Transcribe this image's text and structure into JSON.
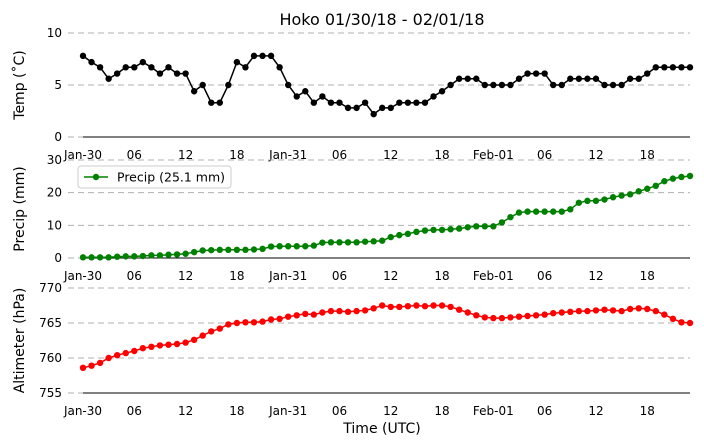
{
  "chart_data": [
    {
      "type": "line",
      "title": "Hoko 01/30/18 - 02/01/18",
      "ylabel": "Temp (˚C)",
      "xlabel": "",
      "ylim": [
        0,
        10
      ],
      "yticks": [
        0,
        5,
        10
      ],
      "grid": true,
      "color": "#000000",
      "xtick_labels": [
        "Jan-30",
        "06",
        "12",
        "18",
        "Jan-31",
        "06",
        "12",
        "18",
        "Feb-01",
        "06",
        "12",
        "18"
      ],
      "xtick_hours": [
        0,
        6,
        12,
        18,
        24,
        30,
        36,
        42,
        48,
        54,
        60,
        66
      ],
      "x_hours": [
        0,
        1,
        2,
        3,
        4,
        5,
        6,
        7,
        8,
        9,
        10,
        11,
        12,
        13,
        14,
        15,
        16,
        17,
        18,
        19,
        20,
        21,
        22,
        23,
        24,
        25,
        26,
        27,
        28,
        29,
        30,
        31,
        32,
        33,
        34,
        35,
        36,
        37,
        38,
        39,
        40,
        41,
        42,
        43,
        44,
        45,
        46,
        47,
        48,
        49,
        50,
        51,
        52,
        53,
        54,
        55,
        56,
        57,
        58,
        59,
        60,
        61,
        62,
        63,
        64,
        65,
        66,
        67,
        68,
        69,
        70,
        71
      ],
      "values": [
        7.8,
        7.2,
        6.7,
        5.6,
        6.1,
        6.7,
        6.7,
        7.2,
        6.7,
        6.1,
        6.7,
        6.1,
        6.1,
        4.4,
        5.0,
        3.3,
        3.3,
        5.0,
        7.2,
        6.7,
        7.8,
        7.8,
        7.8,
        6.7,
        5.0,
        3.9,
        4.4,
        3.3,
        3.9,
        3.3,
        3.3,
        2.8,
        2.8,
        3.3,
        2.2,
        2.8,
        2.8,
        3.3,
        3.3,
        3.3,
        3.3,
        3.9,
        4.4,
        5.0,
        5.6,
        5.6,
        5.6,
        5.0,
        5.0,
        5.0,
        5.0,
        5.6,
        6.1,
        6.1,
        6.1,
        5.0,
        5.0,
        5.6,
        5.6,
        5.6,
        5.6,
        5.0,
        5.0,
        5.0,
        5.6,
        5.6,
        6.1,
        6.7,
        6.7,
        6.7,
        6.7,
        6.7
      ]
    },
    {
      "type": "line",
      "title": "",
      "ylabel": "Precip (mm)",
      "xlabel": "",
      "ylim": [
        0,
        30
      ],
      "yticks": [
        0,
        10,
        20,
        30
      ],
      "grid": true,
      "color": "#008000",
      "legend": {
        "label": "Precip (25.1 mm)",
        "placement": "upper-left"
      },
      "xtick_labels": [
        "Jan-30",
        "06",
        "12",
        "18",
        "Jan-31",
        "06",
        "12",
        "18",
        "Feb-01",
        "06",
        "12",
        "18"
      ],
      "xtick_hours": [
        0,
        6,
        12,
        18,
        24,
        30,
        36,
        42,
        48,
        54,
        60,
        66
      ],
      "x_hours": [
        0,
        1,
        2,
        3,
        4,
        5,
        6,
        7,
        8,
        9,
        10,
        11,
        12,
        13,
        14,
        15,
        16,
        17,
        18,
        19,
        20,
        21,
        22,
        23,
        24,
        25,
        26,
        27,
        28,
        29,
        30,
        31,
        32,
        33,
        34,
        35,
        36,
        37,
        38,
        39,
        40,
        41,
        42,
        43,
        44,
        45,
        46,
        47,
        48,
        49,
        50,
        51,
        52,
        53,
        54,
        55,
        56,
        57,
        58,
        59,
        60,
        61,
        62,
        63,
        64,
        65,
        66,
        67,
        68,
        69,
        70,
        71
      ],
      "values": [
        0.2,
        0.2,
        0.2,
        0.2,
        0.4,
        0.5,
        0.5,
        0.6,
        0.8,
        0.8,
        1.0,
        1.1,
        1.3,
        1.8,
        2.3,
        2.4,
        2.5,
        2.5,
        2.5,
        2.5,
        2.6,
        2.8,
        3.5,
        3.6,
        3.6,
        3.6,
        3.6,
        3.8,
        4.7,
        4.8,
        4.8,
        4.8,
        4.8,
        5.0,
        5.1,
        5.3,
        6.4,
        7.0,
        7.4,
        8.0,
        8.4,
        8.6,
        8.6,
        8.8,
        9.0,
        9.4,
        9.7,
        9.7,
        9.7,
        10.9,
        12.5,
        13.9,
        14.2,
        14.2,
        14.2,
        14.2,
        14.2,
        14.9,
        16.9,
        17.5,
        17.5,
        17.9,
        18.6,
        19.1,
        19.5,
        20.4,
        21.2,
        22.1,
        23.5,
        24.3,
        24.8,
        25.1
      ]
    },
    {
      "type": "line",
      "title": "",
      "ylabel": "Altimeter (hPa)",
      "xlabel": "Time (UTC)",
      "ylim": [
        755,
        770
      ],
      "yticks": [
        755,
        760,
        765,
        770
      ],
      "grid": true,
      "color": "#ff0000",
      "xtick_labels": [
        "Jan-30",
        "06",
        "12",
        "18",
        "Jan-31",
        "06",
        "12",
        "18",
        "Feb-01",
        "06",
        "12",
        "18"
      ],
      "xtick_hours": [
        0,
        6,
        12,
        18,
        24,
        30,
        36,
        42,
        48,
        54,
        60,
        66
      ],
      "x_hours": [
        0,
        1,
        2,
        3,
        4,
        5,
        6,
        7,
        8,
        9,
        10,
        11,
        12,
        13,
        14,
        15,
        16,
        17,
        18,
        19,
        20,
        21,
        22,
        23,
        24,
        25,
        26,
        27,
        28,
        29,
        30,
        31,
        32,
        33,
        34,
        35,
        36,
        37,
        38,
        39,
        40,
        41,
        42,
        43,
        44,
        45,
        46,
        47,
        48,
        49,
        50,
        51,
        52,
        53,
        54,
        55,
        56,
        57,
        58,
        59,
        60,
        61,
        62,
        63,
        64,
        65,
        66,
        67,
        68,
        69,
        70,
        71
      ],
      "values": [
        758.6,
        758.9,
        759.3,
        760.0,
        760.4,
        760.7,
        761.0,
        761.4,
        761.6,
        761.8,
        761.9,
        762.0,
        762.2,
        762.6,
        763.2,
        763.8,
        764.2,
        764.8,
        765.0,
        765.1,
        765.1,
        765.2,
        765.5,
        765.6,
        765.9,
        766.1,
        766.3,
        766.2,
        766.5,
        766.7,
        766.7,
        766.6,
        766.7,
        766.8,
        767.1,
        767.5,
        767.3,
        767.3,
        767.4,
        767.5,
        767.4,
        767.5,
        767.5,
        767.3,
        766.9,
        766.5,
        766.1,
        765.8,
        765.7,
        765.7,
        765.8,
        765.9,
        766.0,
        766.1,
        766.2,
        766.4,
        766.5,
        766.6,
        766.7,
        766.7,
        766.8,
        766.9,
        766.8,
        766.7,
        767.0,
        767.1,
        767.0,
        766.7,
        766.2,
        765.6,
        765.1,
        765.0
      ]
    }
  ]
}
